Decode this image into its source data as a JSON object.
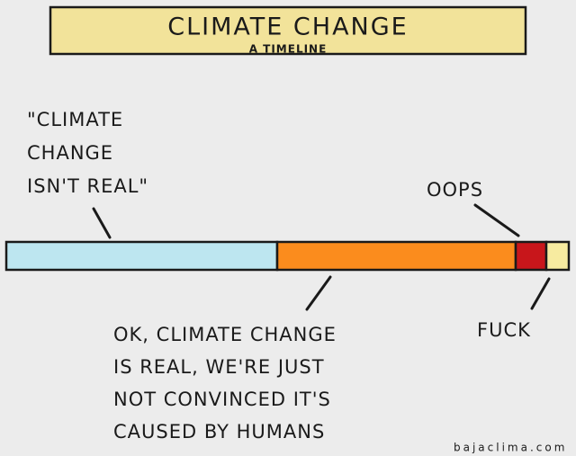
{
  "header": {
    "title": "CLIMATE CHANGE",
    "subtitle": "A TIMELINE"
  },
  "labels": [
    {
      "lines": [
        "\"CLIMATE",
        "CHANGE",
        "ISN'T REAL\""
      ]
    },
    {
      "lines": [
        "OOPS"
      ]
    },
    {
      "lines": [
        "OK, CLIMATE CHANGE",
        "IS REAL, WE'RE JUST",
        "NOT CONVINCED IT'S",
        "CAUSED BY HUMANS"
      ]
    },
    {
      "lines": [
        "FUCK"
      ]
    }
  ],
  "credit": "bajaclima.com"
}
